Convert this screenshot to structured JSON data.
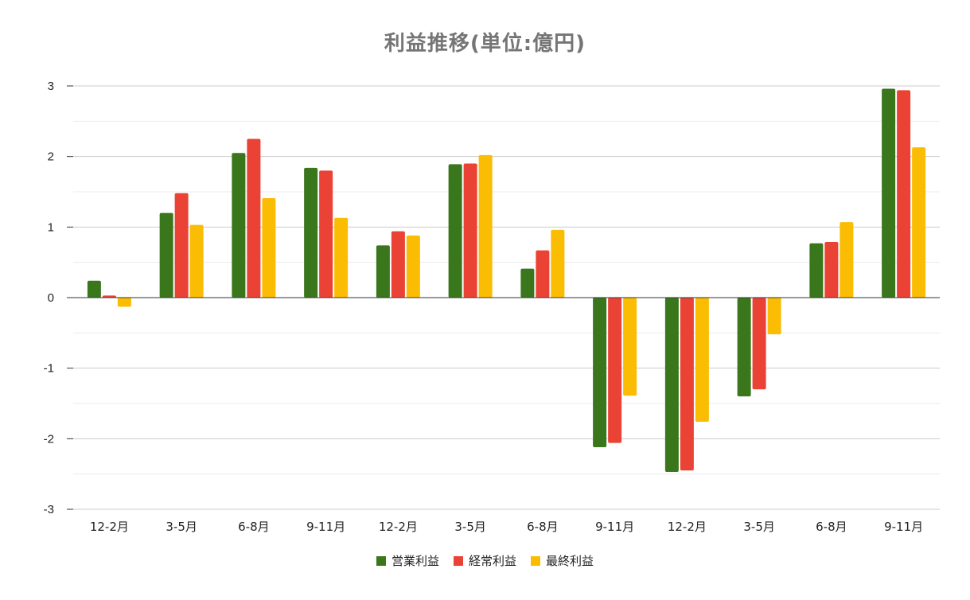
{
  "chart_data": {
    "type": "bar",
    "title": "利益推移(単位:億円)",
    "xlabel": "",
    "ylabel": "",
    "categories": [
      "12-2月",
      "3-5月",
      "6-8月",
      "9-11月",
      "12-2月",
      "3-5月",
      "6-8月",
      "9-11月",
      "12-2月",
      "3-5月",
      "6-8月",
      "9-11月"
    ],
    "ylim": [
      -3,
      3
    ],
    "yticks": [
      3,
      2,
      1,
      0,
      -1,
      -2,
      -3
    ],
    "grid": true,
    "legend_position": "bottom",
    "series": [
      {
        "name": "営業利益",
        "color": "#3a761c",
        "values": [
          0.24,
          1.2,
          2.05,
          1.84,
          0.74,
          1.89,
          0.41,
          -2.12,
          -2.47,
          -1.4,
          0.77,
          2.96
        ]
      },
      {
        "name": "経常利益",
        "color": "#ea4335",
        "values": [
          0.03,
          1.48,
          2.25,
          1.8,
          0.94,
          1.9,
          0.67,
          -2.06,
          -2.45,
          -1.3,
          0.79,
          2.94
        ]
      },
      {
        "name": "最終利益",
        "color": "#fbbc04",
        "values": [
          -0.13,
          1.03,
          1.41,
          1.13,
          0.88,
          2.02,
          0.96,
          -1.39,
          -1.76,
          -0.52,
          1.07,
          2.13
        ]
      }
    ]
  }
}
